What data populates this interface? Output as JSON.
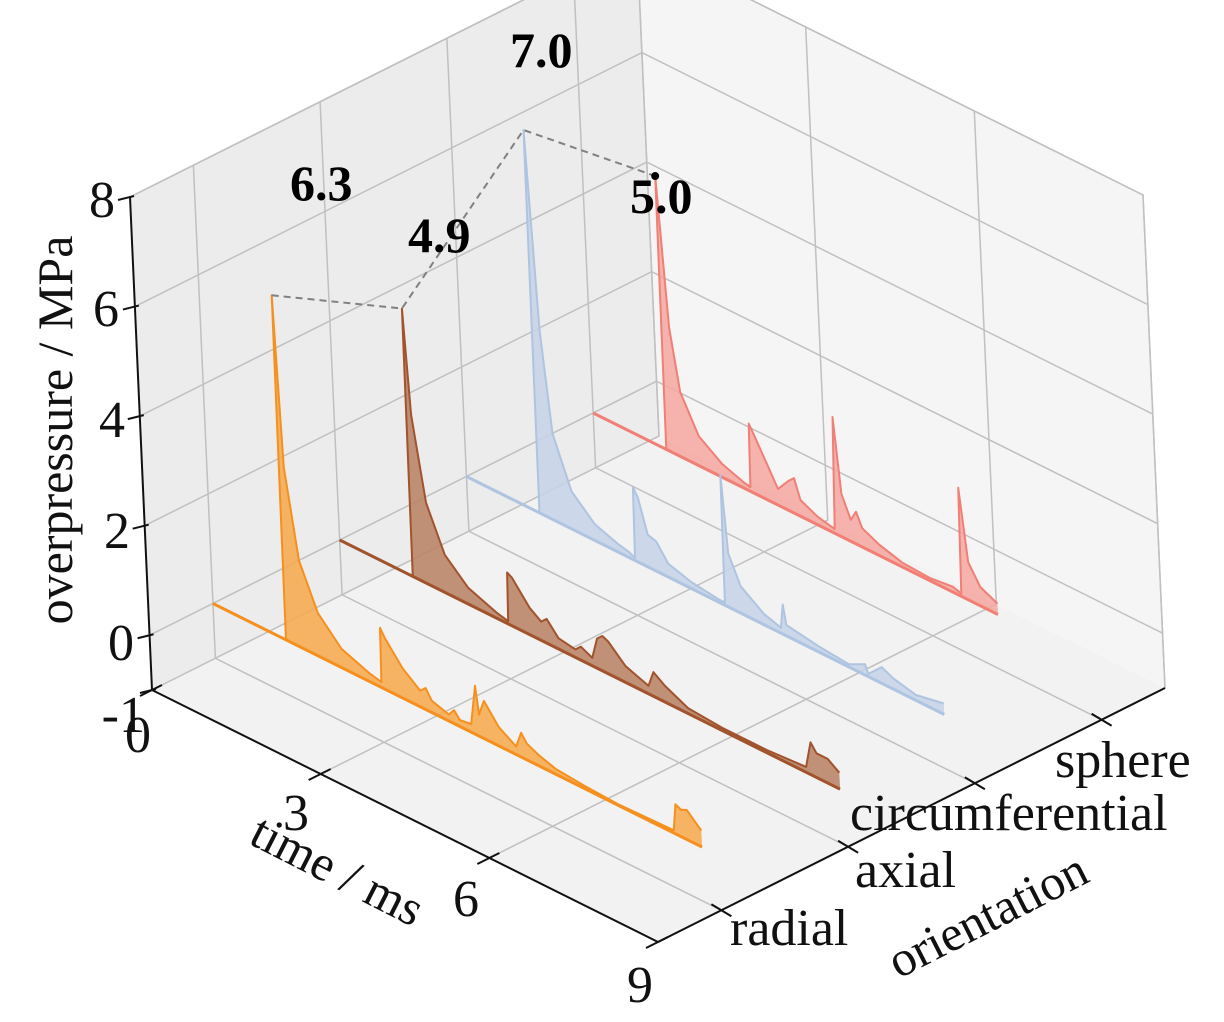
{
  "chart_data": {
    "type": "area",
    "projection": "3d-waterfall",
    "title": "",
    "xlabel": "time / ms",
    "ylabel": "orientation",
    "zlabel": "overpressure / MPa",
    "x_ticks": [
      "0",
      "3",
      "6",
      "9"
    ],
    "x_range": [
      0,
      9
    ],
    "y_ticks": [
      "radial",
      "axial",
      "circumferential",
      "sphere"
    ],
    "z_ticks": [
      "-1",
      "0",
      "2",
      "4",
      "6",
      "8"
    ],
    "z_range": [
      -1,
      8
    ],
    "grid": true,
    "series": [
      {
        "name": "radial",
        "color": "#f5901e",
        "fill": "#f7a84a",
        "peak": 6.3,
        "peak_label": "6.3",
        "points": [
          [
            0,
            0
          ],
          [
            1.3,
            0
          ],
          [
            1.32,
            6.3
          ],
          [
            1.4,
            3.2
          ],
          [
            1.6,
            1.6
          ],
          [
            1.9,
            0.8
          ],
          [
            2.3,
            0.35
          ],
          [
            2.8,
            0.15
          ],
          [
            3.0,
            0.1
          ],
          [
            3.02,
            1.1
          ],
          [
            3.1,
            0.95
          ],
          [
            3.4,
            0.55
          ],
          [
            3.7,
            0.3
          ],
          [
            3.8,
            0.4
          ],
          [
            3.9,
            0.22
          ],
          [
            4.2,
            0.12
          ],
          [
            4.3,
            0.25
          ],
          [
            4.4,
            0.12
          ],
          [
            4.6,
            0.15
          ],
          [
            4.7,
            0.9
          ],
          [
            4.75,
            0.4
          ],
          [
            4.85,
            0.7
          ],
          [
            5.1,
            0.35
          ],
          [
            5.4,
            0.15
          ],
          [
            5.5,
            0.45
          ],
          [
            5.6,
            0.3
          ],
          [
            5.8,
            0.2
          ],
          [
            6.1,
            0.1
          ],
          [
            6.6,
            0.05
          ],
          [
            7.2,
            0.02
          ],
          [
            8.2,
            0.05
          ],
          [
            8.25,
            0.55
          ],
          [
            8.35,
            0.5
          ],
          [
            8.45,
            0.55
          ],
          [
            8.7,
            0.3
          ]
        ]
      },
      {
        "name": "axial",
        "color": "#a0532d",
        "fill": "#b77f61",
        "peak": 4.9,
        "peak_label": "4.9",
        "points": [
          [
            0,
            0
          ],
          [
            1.3,
            0
          ],
          [
            1.32,
            4.9
          ],
          [
            1.4,
            3.0
          ],
          [
            1.6,
            1.5
          ],
          [
            1.9,
            0.7
          ],
          [
            2.3,
            0.3
          ],
          [
            2.8,
            0.1
          ],
          [
            3.0,
            0.05
          ],
          [
            3.02,
            0.95
          ],
          [
            3.1,
            0.9
          ],
          [
            3.4,
            0.5
          ],
          [
            3.6,
            0.35
          ],
          [
            3.7,
            0.45
          ],
          [
            3.9,
            0.2
          ],
          [
            4.2,
            0.15
          ],
          [
            4.3,
            0.25
          ],
          [
            4.5,
            0.15
          ],
          [
            4.6,
            0.55
          ],
          [
            4.7,
            0.65
          ],
          [
            4.8,
            0.6
          ],
          [
            5.1,
            0.3
          ],
          [
            5.5,
            0.15
          ],
          [
            5.6,
            0.45
          ],
          [
            5.8,
            0.3
          ],
          [
            6.2,
            0.1
          ],
          [
            6.8,
            0.05
          ],
          [
            7.6,
            0.05
          ],
          [
            8.3,
            0.1
          ],
          [
            8.4,
            0.6
          ],
          [
            8.5,
            0.45
          ],
          [
            8.7,
            0.45
          ],
          [
            8.9,
            0.3
          ]
        ]
      },
      {
        "name": "circumferential",
        "color": "#aec4e0",
        "fill": "#c5d4e8",
        "peak": 7.0,
        "peak_label": "7.0",
        "points": [
          [
            0,
            0
          ],
          [
            1.3,
            0
          ],
          [
            1.32,
            7.0
          ],
          [
            1.45,
            3.4
          ],
          [
            1.6,
            1.6
          ],
          [
            1.9,
            0.7
          ],
          [
            2.3,
            0.3
          ],
          [
            2.7,
            0.15
          ],
          [
            2.9,
            0.1
          ],
          [
            3.0,
            0.05
          ],
          [
            3.02,
            1.35
          ],
          [
            3.1,
            1.2
          ],
          [
            3.25,
            0.6
          ],
          [
            3.4,
            0.55
          ],
          [
            3.6,
            0.25
          ],
          [
            4.0,
            0.12
          ],
          [
            4.5,
            0.05
          ],
          [
            4.6,
            0.05
          ],
          [
            4.62,
            2.4
          ],
          [
            4.7,
            1.0
          ],
          [
            4.9,
            0.5
          ],
          [
            5.3,
            0.2
          ],
          [
            5.6,
            0.1
          ],
          [
            5.65,
            0.55
          ],
          [
            5.7,
            0.2
          ],
          [
            6.3,
            0.1
          ],
          [
            6.8,
            0.05
          ],
          [
            7.1,
            0.2
          ],
          [
            7.15,
            0.05
          ],
          [
            7.4,
            0.3
          ],
          [
            7.6,
            0.2
          ],
          [
            8.0,
            0.1
          ],
          [
            8.5,
            0.2
          ]
        ]
      },
      {
        "name": "sphere",
        "color": "#f07f76",
        "fill": "#f6a6a0",
        "peak": 5.0,
        "peak_label": "5.0",
        "points": [
          [
            0,
            0
          ],
          [
            1.3,
            0
          ],
          [
            1.32,
            5.0
          ],
          [
            1.45,
            2.3
          ],
          [
            1.6,
            1.2
          ],
          [
            1.9,
            0.55
          ],
          [
            2.3,
            0.25
          ],
          [
            2.7,
            0.1
          ],
          [
            2.8,
            0.08
          ],
          [
            2.82,
            1.25
          ],
          [
            2.9,
            1.1
          ],
          [
            3.1,
            0.7
          ],
          [
            3.3,
            0.3
          ],
          [
            3.5,
            0.55
          ],
          [
            3.6,
            0.65
          ],
          [
            3.7,
            0.3
          ],
          [
            4.0,
            0.15
          ],
          [
            4.3,
            0.08
          ],
          [
            4.35,
            2.15
          ],
          [
            4.45,
            0.8
          ],
          [
            4.6,
            0.4
          ],
          [
            4.7,
            0.6
          ],
          [
            4.8,
            0.35
          ],
          [
            5.1,
            0.2
          ],
          [
            5.5,
            0.08
          ],
          [
            6.0,
            0.05
          ],
          [
            6.4,
            0.1
          ],
          [
            6.55,
            0.05
          ],
          [
            6.58,
            2.0
          ],
          [
            6.7,
            0.7
          ],
          [
            6.9,
            0.35
          ],
          [
            7.2,
            0.2
          ]
        ]
      }
    ],
    "peak_connector": {
      "style": "dashed",
      "color": "#808080"
    },
    "annotations": [
      "6.3",
      "4.9",
      "7.0",
      "5.0"
    ]
  }
}
